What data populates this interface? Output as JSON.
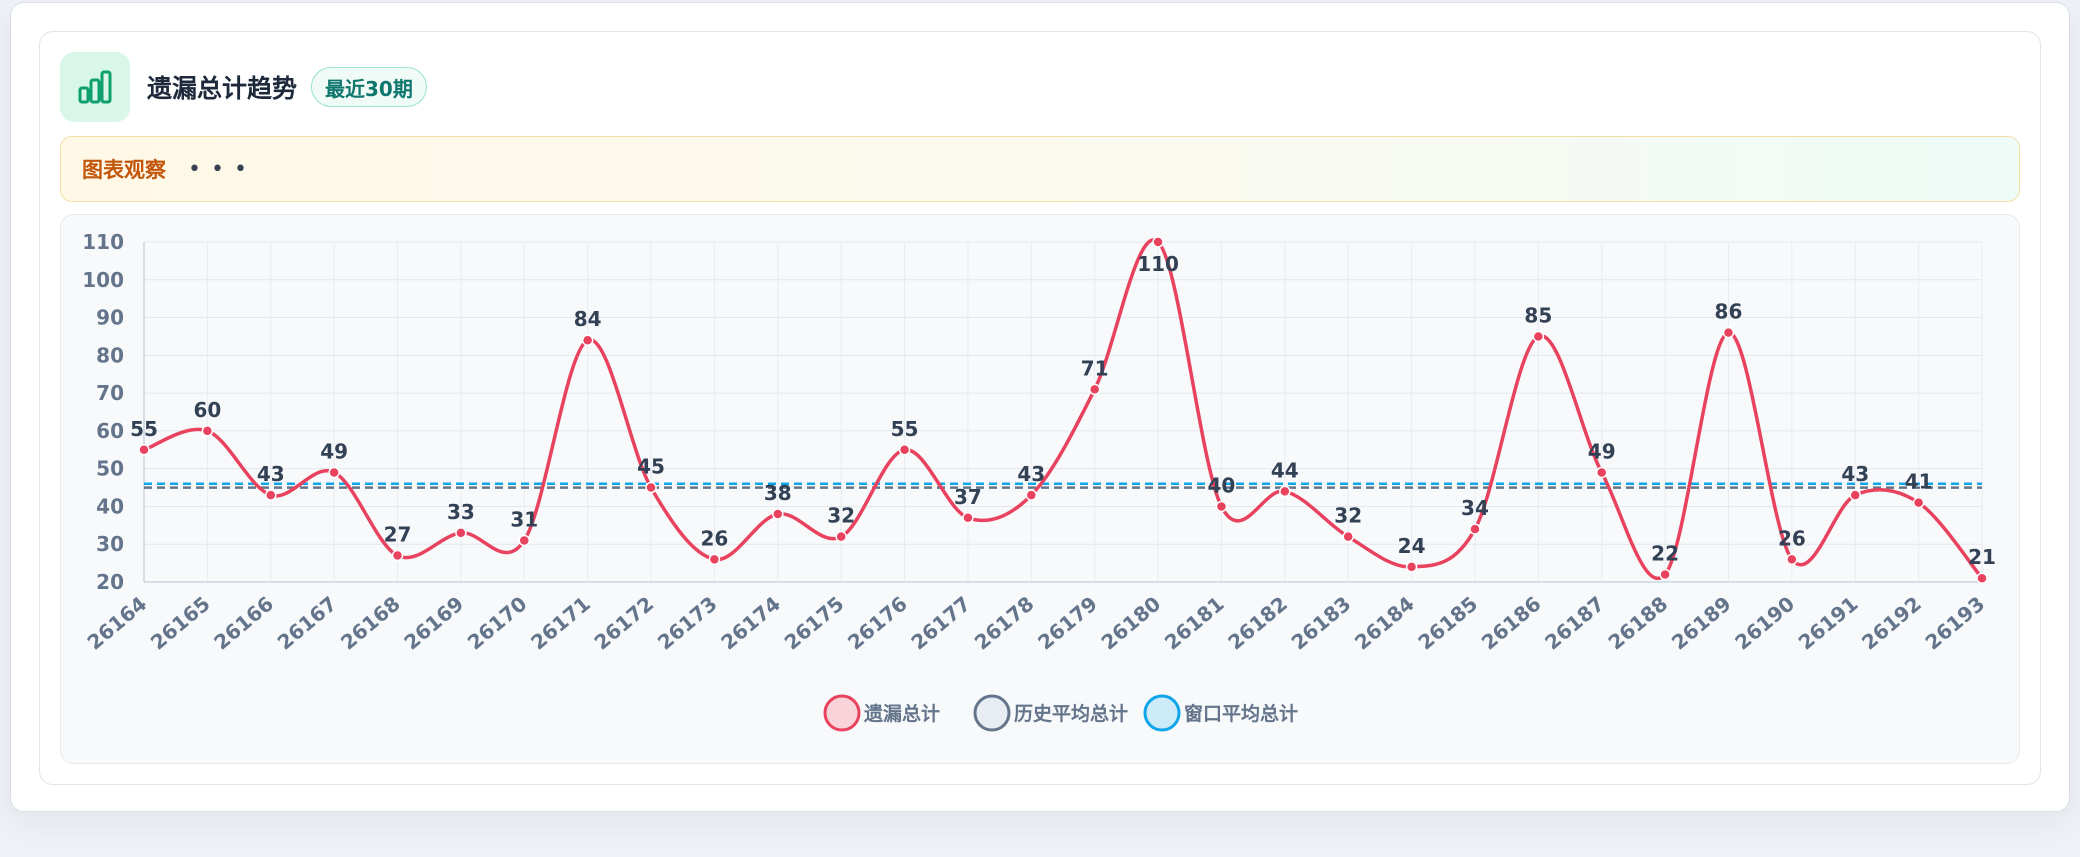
{
  "header": {
    "title": "遗漏总计趋势",
    "badge": "最近30期",
    "icon": "bar-chart-icon"
  },
  "observation": {
    "label": "图表观察",
    "dots": "•••"
  },
  "colors": {
    "series_line": "#e8425e",
    "history_avg": "#64748b",
    "window_avg": "#0ea5e9",
    "icon_green": "#0e9f6e"
  },
  "chart_data": {
    "type": "line",
    "x": [
      "26164",
      "26165",
      "26166",
      "26167",
      "26168",
      "26169",
      "26170",
      "26171",
      "26172",
      "26173",
      "26174",
      "26175",
      "26176",
      "26177",
      "26178",
      "26179",
      "26180",
      "26181",
      "26182",
      "26183",
      "26184",
      "26185",
      "26186",
      "26187",
      "26188",
      "26189",
      "26190",
      "26191",
      "26192",
      "26193"
    ],
    "series": [
      {
        "name": "遗漏总计",
        "values": [
          55,
          60,
          43,
          49,
          27,
          33,
          31,
          84,
          45,
          26,
          38,
          32,
          55,
          37,
          43,
          71,
          110,
          40,
          44,
          32,
          24,
          34,
          85,
          49,
          22,
          86,
          26,
          43,
          41,
          21
        ],
        "style": "smooth line with point labels"
      },
      {
        "name": "历史平均总计",
        "values": [
          45,
          45,
          45,
          45,
          45,
          45,
          45,
          45,
          45,
          45,
          45,
          45,
          45,
          45,
          45,
          45,
          45,
          45,
          45,
          45,
          45,
          45,
          45,
          45,
          45,
          45,
          45,
          45,
          45,
          45
        ],
        "style": "dashed"
      },
      {
        "name": "窗口平均总计",
        "values": [
          46,
          46,
          46,
          46,
          46,
          46,
          46,
          46,
          46,
          46,
          46,
          46,
          46,
          46,
          46,
          46,
          46,
          46,
          46,
          46,
          46,
          46,
          46,
          46,
          46,
          46,
          46,
          46,
          46,
          46
        ],
        "style": "dashed"
      }
    ],
    "ylim": [
      20,
      110
    ],
    "yticks": [
      20,
      30,
      40,
      50,
      60,
      70,
      80,
      90,
      100,
      110
    ],
    "grid": true,
    "legend": "bottom-center"
  }
}
